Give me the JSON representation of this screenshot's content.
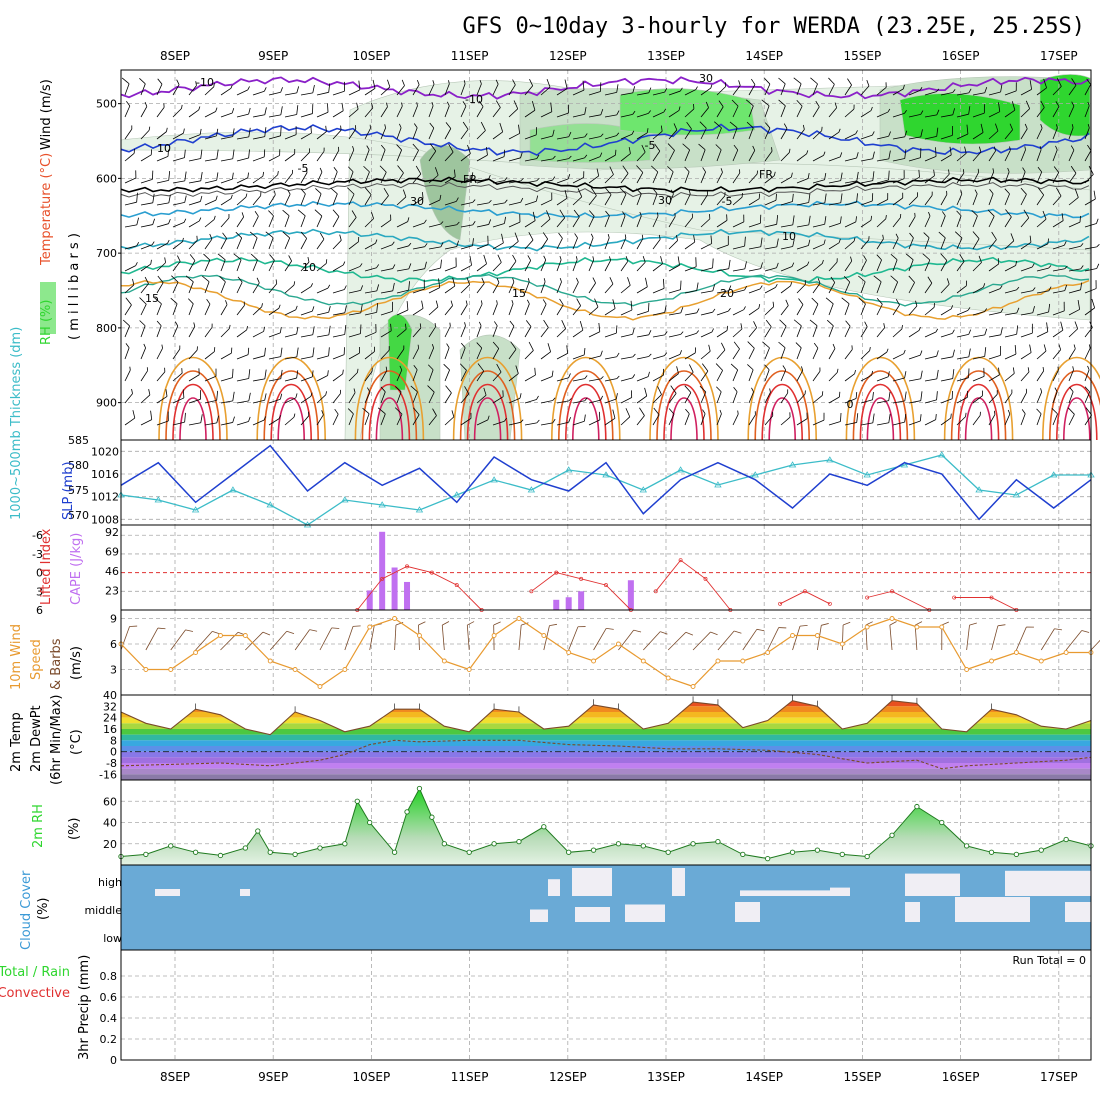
{
  "title": "GFS 0~10day 3-hourly for WERDA (23.25E, 25.25S)",
  "dates": [
    "8SEP",
    "9SEP",
    "10SEP",
    "11SEP",
    "12SEP",
    "13SEP",
    "14SEP",
    "15SEP",
    "16SEP",
    "17SEP"
  ],
  "colors": {
    "rh": "#2fd62f",
    "wind_temp_label": "#000000",
    "temp_label": "#e8502a",
    "slp": "#1f3fcf",
    "thickness": "#3cbcc8",
    "lifted_index": "#e03030",
    "cape": "#c070f0",
    "wind_speed": "#e89a30",
    "barb": "#7a4a2a",
    "dewpt": "#7a4a2a",
    "cloud": "#6aaad6",
    "precip_total": "#2fd62f",
    "precip_conv": "#e03030"
  },
  "panels": {
    "upper_air": {
      "ylabel_rh": "RH (%)",
      "ylabel_temp": "Temperature (°C)",
      "ylabel_wind": "Wind (m/s)",
      "ylabel_units": "( m i l l i b a r s )",
      "yticks": [
        "500",
        "600",
        "700",
        "800",
        "900"
      ],
      "contour_labels": [
        "-10",
        "-10",
        "-5",
        "-5",
        "-5",
        "FR",
        "FR",
        "10",
        "10",
        "15",
        "15",
        "20",
        "30",
        "30",
        "30",
        "10",
        "0"
      ]
    },
    "slp": {
      "ylabel_thick": "1000~500mb Thickness (dm)",
      "ylabel_slp": "SLP (mb)",
      "yticks_left": [
        "585",
        "580",
        "575",
        "570"
      ],
      "yticks_right": [
        "1020",
        "1016",
        "1012",
        "1008"
      ]
    },
    "cape": {
      "ylabel_li": "Lifted Index",
      "ylabel_cape": "CAPE (J/kg)",
      "yticks_left": [
        "-6",
        "-3",
        "0",
        "3",
        "6"
      ],
      "yticks_right": [
        "92",
        "69",
        "46",
        "23"
      ]
    },
    "wind10": {
      "ylabel_1": "10m Wind",
      "ylabel_2": "Speed",
      "ylabel_3": "& Barbs",
      "ylabel_units": "(m/s)",
      "yticks": [
        "9",
        "6",
        "3"
      ]
    },
    "temp2m": {
      "ylabel_1": "2m Temp",
      "ylabel_2": "2m DewPt",
      "ylabel_3": "(6hr Min/Max)",
      "ylabel_units": "(°C)",
      "yticks": [
        "40",
        "32",
        "24",
        "16",
        "8",
        "0",
        "-8",
        "-16"
      ]
    },
    "rh2m": {
      "ylabel": "2m RH",
      "ylabel_units": "(%)",
      "yticks": [
        "60",
        "40",
        "20"
      ]
    },
    "cloud": {
      "ylabel": "Cloud Cover",
      "ylabel_units": "(%)",
      "levels": [
        "high",
        "middle",
        "low"
      ]
    },
    "precip": {
      "ylabel_1": "Total / Rain",
      "ylabel_2": "Convective",
      "ylabel_3": "3hr Precip (mm)",
      "yticks": [
        "0.8",
        "0.6",
        "0.4",
        "0.2",
        "0"
      ],
      "run_total": "Run Total = 0"
    }
  },
  "chart_data": [
    {
      "type": "line",
      "name": "1000~500mb Thickness (dm)",
      "x_hours": [
        0,
        9,
        18,
        27,
        36,
        45,
        54,
        63,
        72,
        81,
        90,
        99,
        108,
        117,
        126,
        135,
        144,
        153,
        162,
        171,
        180,
        189,
        198,
        207,
        216,
        225,
        234
      ],
      "values": [
        574,
        573,
        571,
        575,
        572,
        568,
        573,
        572,
        571,
        574,
        577,
        575,
        579,
        578,
        575,
        579,
        576,
        578,
        580,
        581,
        578,
        580,
        582,
        575,
        574,
        578,
        578
      ],
      "ylim": [
        568,
        585
      ]
    },
    {
      "type": "line",
      "name": "SLP (mb)",
      "x_hours": [
        0,
        9,
        18,
        27,
        36,
        45,
        54,
        63,
        72,
        81,
        90,
        99,
        108,
        117,
        126,
        135,
        144,
        153,
        162,
        171,
        180,
        189,
        198,
        207,
        216,
        225,
        234
      ],
      "values": [
        1014,
        1018,
        1011,
        1016,
        1021,
        1013,
        1018,
        1014,
        1017,
        1011,
        1019,
        1015,
        1013,
        1018,
        1009,
        1015,
        1018,
        1015,
        1010,
        1016,
        1014,
        1018,
        1016,
        1008,
        1015,
        1010,
        1015
      ],
      "ylim": [
        1007,
        1022
      ]
    },
    {
      "type": "line",
      "name": "Lifted Index",
      "x_hours": [
        57,
        63,
        69,
        75,
        81,
        87,
        99,
        105,
        111,
        117,
        123,
        129,
        135,
        141,
        147,
        159,
        165,
        171,
        180,
        186,
        195,
        201,
        210,
        216
      ],
      "values": [
        6,
        1,
        -1,
        0,
        2,
        6,
        3,
        0,
        1,
        2,
        6,
        3,
        -2,
        1,
        6,
        5,
        3,
        5,
        4,
        3,
        6,
        4,
        4,
        6
      ],
      "ylim": [
        6,
        -7
      ]
    },
    {
      "type": "bar",
      "name": "CAPE (J/kg)",
      "x_hours": [
        60,
        63,
        66,
        69,
        105,
        108,
        111,
        114,
        123
      ],
      "values": [
        23,
        92,
        50,
        33,
        12,
        15,
        22,
        0,
        35
      ],
      "ylim": [
        0,
        100
      ]
    },
    {
      "type": "line",
      "name": "10m Wind Speed",
      "x_hours": [
        0,
        6,
        12,
        18,
        24,
        30,
        36,
        42,
        48,
        54,
        60,
        66,
        72,
        78,
        84,
        90,
        96,
        102,
        108,
        114,
        120,
        126,
        132,
        138,
        144,
        150,
        156,
        162,
        168,
        174,
        180,
        186,
        192,
        198,
        204,
        210,
        216,
        222,
        228,
        234
      ],
      "values": [
        6,
        3,
        3,
        5,
        7,
        7,
        4,
        3,
        1,
        3,
        8,
        9,
        7,
        4,
        3,
        7,
        9,
        7,
        5,
        4,
        6,
        4,
        2,
        1,
        4,
        4,
        5,
        7,
        7,
        6,
        8,
        9,
        8,
        8,
        3,
        4,
        5,
        4,
        5,
        5
      ],
      "ylim": [
        0,
        10
      ]
    },
    {
      "type": "area",
      "name": "2m Temp",
      "x_hours": [
        0,
        6,
        12,
        18,
        24,
        30,
        36,
        42,
        48,
        54,
        60,
        66,
        72,
        78,
        84,
        90,
        96,
        102,
        108,
        114,
        120,
        126,
        132,
        138,
        144,
        150,
        156,
        162,
        168,
        174,
        180,
        186,
        192,
        198,
        204,
        210,
        216,
        222,
        228,
        234
      ],
      "values": [
        28,
        20,
        16,
        30,
        26,
        16,
        12,
        28,
        22,
        14,
        18,
        30,
        30,
        18,
        14,
        30,
        28,
        16,
        18,
        33,
        30,
        16,
        20,
        35,
        33,
        17,
        22,
        36,
        32,
        16,
        20,
        36,
        34,
        16,
        14,
        30,
        26,
        18,
        16,
        22
      ],
      "ylim": [
        -20,
        40
      ]
    },
    {
      "type": "line",
      "name": "2m DewPt",
      "x_hours": [
        0,
        12,
        24,
        36,
        48,
        54,
        60,
        66,
        72,
        84,
        96,
        108,
        120,
        132,
        144,
        156,
        168,
        180,
        192,
        198,
        204,
        216,
        228,
        234
      ],
      "values": [
        -10,
        -9,
        -8,
        -10,
        -6,
        -2,
        5,
        8,
        7,
        8,
        8,
        5,
        4,
        2,
        2,
        1,
        -2,
        -8,
        -6,
        -12,
        -10,
        -8,
        -6,
        -4
      ],
      "ylim": [
        -20,
        40
      ]
    },
    {
      "type": "area",
      "name": "2m RH",
      "x_hours": [
        0,
        6,
        12,
        18,
        24,
        30,
        33,
        36,
        42,
        48,
        54,
        57,
        60,
        66,
        69,
        72,
        75,
        78,
        84,
        90,
        96,
        102,
        108,
        114,
        120,
        126,
        132,
        138,
        144,
        150,
        156,
        162,
        168,
        174,
        180,
        186,
        192,
        198,
        204,
        210,
        216,
        222,
        228,
        234
      ],
      "values": [
        8,
        10,
        18,
        12,
        9,
        16,
        32,
        12,
        10,
        16,
        20,
        60,
        40,
        12,
        50,
        72,
        45,
        20,
        12,
        20,
        22,
        36,
        12,
        14,
        20,
        18,
        12,
        20,
        22,
        10,
        6,
        12,
        14,
        10,
        8,
        28,
        55,
        40,
        18,
        12,
        10,
        14,
        24,
        18
      ],
      "ylim": [
        0,
        80
      ]
    },
    {
      "type": "line",
      "name": "3hr Precip (mm)",
      "x_hours": [
        0,
        234
      ],
      "values": [
        0,
        0
      ],
      "ylim": [
        0,
        1
      ]
    }
  ]
}
